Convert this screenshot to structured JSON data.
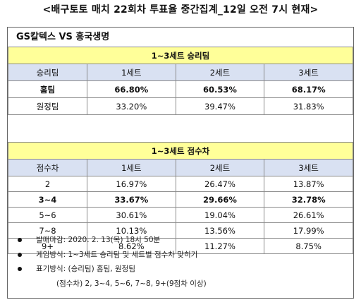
{
  "header": {
    "title": "<배구토토 매치 22회차 투표율 중간집계_12일 오전 7시 현재>"
  },
  "match": {
    "title": "GS칼텍스 VS 흥국생명"
  },
  "winner_section": {
    "title": "1~3세트 승리팀",
    "columns": [
      "승리팀",
      "1세트",
      "2세트",
      "3세트"
    ],
    "rows": [
      {
        "label": "홈팀",
        "values": [
          "66.80%",
          "60.53%",
          "68.17%"
        ],
        "bold": true
      },
      {
        "label": "원정팀",
        "values": [
          "33.20%",
          "39.47%",
          "31.83%"
        ],
        "bold": false
      }
    ]
  },
  "score_section": {
    "title": "1~3세트 점수차",
    "columns": [
      "점수차",
      "1세트",
      "2세트",
      "3세트"
    ],
    "rows": [
      {
        "label": "2",
        "values": [
          "16.97%",
          "26.47%",
          "13.87%"
        ],
        "bold": false
      },
      {
        "label": "3~4",
        "values": [
          "33.67%",
          "29.66%",
          "32.78%"
        ],
        "bold": true
      },
      {
        "label": "5~6",
        "values": [
          "30.61%",
          "19.04%",
          "26.61%"
        ],
        "bold": false
      },
      {
        "label": "7~8",
        "values": [
          "10.13%",
          "13.56%",
          "17.99%"
        ],
        "bold": false
      },
      {
        "label": "9+",
        "values": [
          "8.62%",
          "11.27%",
          "8.75%"
        ],
        "bold": false
      }
    ]
  },
  "notes": {
    "deadline": "발매마감: 2020. 2. 13(목) 18시 50분",
    "method": "게임방식: 1~3세트 승리팀 및 세트별 점수차 맞히기",
    "format": "표기방식: (승리팀) 홈팀, 원정팀",
    "format_cont": "(점수차) 2, 3~4, 5~6, 7~8, 9+(9점차 이상)"
  },
  "colors": {
    "section_header_bg": "#ffff99",
    "column_header_bg": "#d9e1f2"
  }
}
